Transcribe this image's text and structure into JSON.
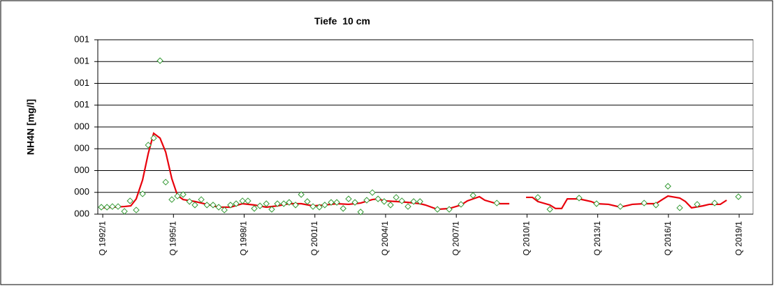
{
  "chart_data": {
    "type": "line",
    "title": "Tiefe  10 cm",
    "y_label": "NH4N [mg/l]",
    "xlim": [
      1991.79,
      2019.59
    ],
    "xticks": [
      {
        "value": 1992,
        "label": "Q 1992/1"
      },
      {
        "value": 1995,
        "label": "Q 1995/1"
      },
      {
        "value": 1998,
        "label": "Q 1998/1"
      },
      {
        "value": 2001,
        "label": "Q 2001/1"
      },
      {
        "value": 2004,
        "label": "Q 2004/1"
      },
      {
        "value": 2007,
        "label": "Q 2007/1"
      },
      {
        "value": 2010,
        "label": "Q 2010/1"
      },
      {
        "value": 2013,
        "label": "Q 2013/1"
      },
      {
        "value": 2016,
        "label": "Q 2016/1"
      },
      {
        "value": 2019,
        "label": "Q 2019/1"
      }
    ],
    "ylim": [
      0,
      0.8
    ],
    "yticks": [
      {
        "value": 0,
        "label": "000"
      },
      {
        "value": 0.1,
        "label": "000"
      },
      {
        "value": 0.2,
        "label": "000"
      },
      {
        "value": 0.3,
        "label": "000"
      },
      {
        "value": 0.4,
        "label": "000"
      },
      {
        "value": 0.5,
        "label": "001"
      },
      {
        "value": 0.6,
        "label": "001"
      },
      {
        "value": 0.7,
        "label": "001"
      },
      {
        "value": 0.8,
        "label": "001"
      }
    ],
    "grid": true,
    "series": [
      {
        "mode": "markers",
        "marker": "diamond",
        "color": "#339933",
        "x": [
          1991.94,
          1992.18,
          1992.41,
          1992.65,
          1992.92,
          1993.16,
          1993.42,
          1993.69,
          1993.93,
          1994.16,
          1994.43,
          1994.67,
          1994.93,
          1995.17,
          1995.41,
          1995.68,
          1995.91,
          1996.18,
          1996.42,
          1996.68,
          1996.92,
          1997.16,
          1997.42,
          1997.66,
          1997.93,
          1998.16,
          1998.43,
          1998.67,
          1998.94,
          1999.17,
          1999.41,
          1999.68,
          1999.91,
          2000.18,
          2000.42,
          2000.68,
          2000.92,
          2001.19,
          2001.42,
          2001.69,
          2001.93,
          2002.2,
          2002.43,
          2002.7,
          2002.94,
          2003.2,
          2003.44,
          2003.68,
          2003.94,
          2004.21,
          2004.45,
          2004.69,
          2004.95,
          2005.19,
          2005.46,
          2006.2,
          2006.7,
          2007.2,
          2007.71,
          2008.72,
          2010.46,
          2010.97,
          2012.21,
          2012.95,
          2013.96,
          2014.97,
          2015.47,
          2015.98,
          2016.48,
          2017.22,
          2017.96,
          2018.97
        ],
        "values": [
          0.032,
          0.032,
          0.035,
          0.035,
          0.013,
          0.061,
          0.019,
          0.093,
          0.317,
          0.349,
          0.704,
          0.147,
          0.067,
          0.083,
          0.09,
          0.058,
          0.042,
          0.067,
          0.042,
          0.042,
          0.032,
          0.019,
          0.042,
          0.048,
          0.061,
          0.061,
          0.026,
          0.038,
          0.048,
          0.022,
          0.048,
          0.048,
          0.054,
          0.042,
          0.09,
          0.058,
          0.035,
          0.032,
          0.042,
          0.054,
          0.054,
          0.026,
          0.07,
          0.054,
          0.01,
          0.064,
          0.099,
          0.07,
          0.058,
          0.042,
          0.077,
          0.061,
          0.035,
          0.058,
          0.058,
          0.022,
          0.022,
          0.045,
          0.086,
          0.051,
          0.077,
          0.022,
          0.074,
          0.048,
          0.035,
          0.051,
          0.042,
          0.128,
          0.029,
          0.045,
          0.051,
          0.08
        ]
      },
      {
        "mode": "line",
        "color": "#e8000b",
        "x": [
          1992.0,
          1992.47,
          1992.92,
          1993.19,
          1993.42,
          1993.69,
          1993.93,
          1994.16,
          1994.43,
          1994.67,
          1994.93,
          1995.17,
          1995.41,
          1995.91,
          1996.42,
          1996.92,
          1997.42,
          1997.93,
          1998.43,
          1998.94,
          1999.41,
          1999.91,
          2000.42,
          2000.92,
          2001.42,
          2001.93,
          2002.43,
          2002.94,
          2003.44,
          2003.68,
          2003.94,
          2004.45,
          2004.95,
          2005.46,
          2005.69,
          2006.2,
          2006.7,
          2007.2,
          2007.47,
          2007.71,
          2007.98,
          2008.21,
          2008.72,
          2009.25,
          2009.6,
          2009.96,
          2010.23,
          2010.46,
          2010.97,
          2011.21,
          2011.47,
          2011.71,
          2012.21,
          2012.72,
          2012.95,
          2013.46,
          2013.96,
          2014.47,
          2014.97,
          2015.47,
          2015.74,
          2015.98,
          2016.48,
          2016.72,
          2016.98,
          2017.46,
          2017.73,
          2018.2,
          2018.47
        ],
        "values": [
          0.029,
          0.032,
          0.035,
          0.038,
          0.07,
          0.157,
          0.278,
          0.371,
          0.349,
          0.285,
          0.163,
          0.086,
          0.067,
          0.058,
          0.045,
          0.032,
          0.032,
          0.048,
          0.042,
          0.032,
          0.038,
          0.048,
          0.048,
          0.038,
          0.042,
          0.048,
          0.045,
          0.051,
          0.067,
          0.07,
          0.061,
          0.058,
          0.054,
          0.048,
          0.042,
          0.022,
          0.026,
          0.042,
          0.061,
          0.07,
          0.08,
          0.064,
          0.048,
          0.048,
          null,
          0.077,
          0.077,
          0.058,
          0.042,
          0.026,
          0.026,
          0.07,
          0.07,
          0.058,
          0.048,
          0.045,
          0.032,
          0.045,
          0.048,
          0.048,
          0.067,
          0.083,
          0.074,
          0.058,
          0.029,
          0.038,
          0.045,
          0.045,
          0.064
        ]
      }
    ]
  }
}
